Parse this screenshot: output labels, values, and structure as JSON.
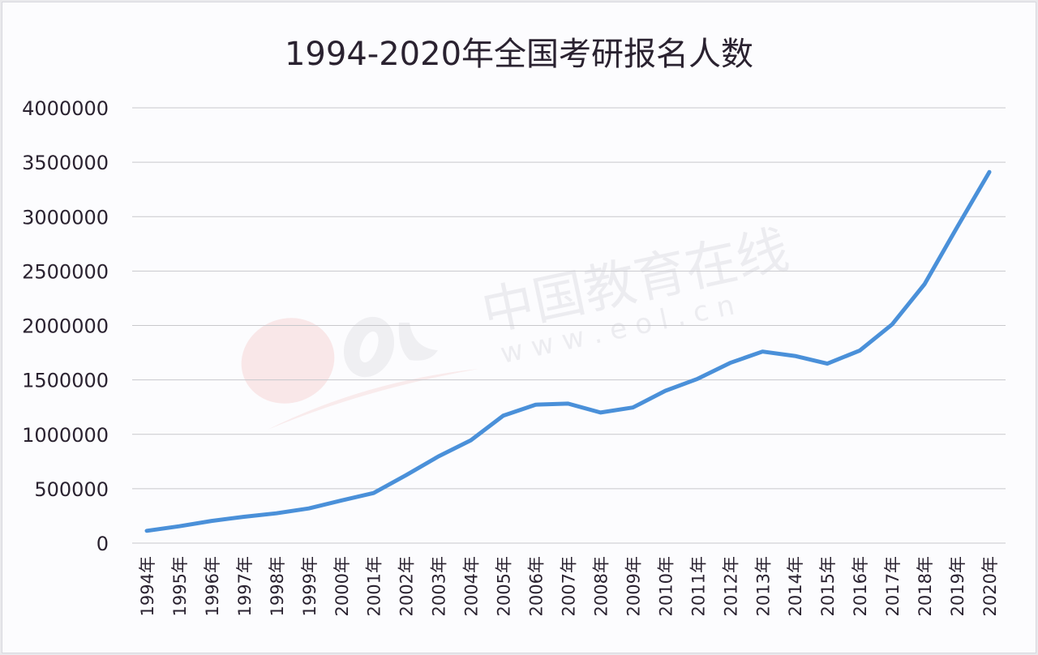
{
  "chart_data": {
    "type": "line",
    "title": "1994-2020年全国考研报名人数",
    "xlabel": "",
    "ylabel": "",
    "ylim": [
      0,
      4000000
    ],
    "yticks": [
      0,
      500000,
      1000000,
      1500000,
      2000000,
      2500000,
      3000000,
      3500000,
      4000000
    ],
    "ytick_labels": [
      "0",
      "500000",
      "1000000",
      "1500000",
      "2000000",
      "2500000",
      "3000000",
      "3500000",
      "4000000"
    ],
    "grid": true,
    "legend": null,
    "categories": [
      "1994年",
      "1995年",
      "1996年",
      "1997年",
      "1998年",
      "1999年",
      "2000年",
      "2001年",
      "2002年",
      "2003年",
      "2004年",
      "2005年",
      "2006年",
      "2007年",
      "2008年",
      "2009年",
      "2010年",
      "2011年",
      "2012年",
      "2013年",
      "2014年",
      "2015年",
      "2016年",
      "2017年",
      "2018年",
      "2019年",
      "2020年"
    ],
    "series": [
      {
        "name": "报名人数",
        "color": "#4a90d9",
        "values": [
          113000,
          155000,
          204000,
          242000,
          274000,
          319000,
          392000,
          460000,
          624000,
          797000,
          945000,
          1171000,
          1272000,
          1282000,
          1200000,
          1246000,
          1400000,
          1510000,
          1656000,
          1760000,
          1720000,
          1649000,
          1770000,
          2010000,
          2380000,
          2900000,
          3410000
        ]
      }
    ],
    "watermark": {
      "logo_text": "eol",
      "text": "中国教育在线",
      "url_text": "w w w . e o l . c n"
    }
  },
  "colors": {
    "line": "#4a90d9",
    "grid": "#c8c8cc",
    "text": "#2a2230",
    "background": "#fcfcfe"
  }
}
